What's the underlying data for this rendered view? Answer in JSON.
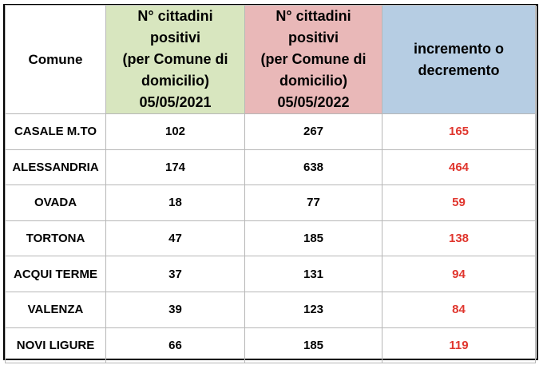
{
  "table": {
    "headers": [
      {
        "lines": [
          "Comune"
        ]
      },
      {
        "lines": [
          "N° cittadini",
          "positivi",
          "(per Comune di",
          "domicilio)",
          "05/05/2021"
        ]
      },
      {
        "lines": [
          "N° cittadini",
          "positivi",
          "(per Comune di",
          "domicilio)",
          "05/05/2022"
        ]
      },
      {
        "lines": [
          "incremento o",
          "decremento"
        ]
      }
    ],
    "rows": [
      {
        "comune": "CASALE M.TO",
        "v2021": "102",
        "v2022": "267",
        "delta": "165"
      },
      {
        "comune": "ALESSANDRIA",
        "v2021": "174",
        "v2022": "638",
        "delta": "464"
      },
      {
        "comune": "OVADA",
        "v2021": "18",
        "v2022": "77",
        "delta": "59"
      },
      {
        "comune": "TORTONA",
        "v2021": "47",
        "v2022": "185",
        "delta": "138"
      },
      {
        "comune": "ACQUI TERME",
        "v2021": "37",
        "v2022": "131",
        "delta": "94"
      },
      {
        "comune": "VALENZA",
        "v2021": "39",
        "v2022": "123",
        "delta": "84"
      },
      {
        "comune": "NOVI LIGURE",
        "v2021": "66",
        "v2022": "185",
        "delta": "119"
      }
    ]
  },
  "colors": {
    "header_2021": "#d8e6bf",
    "header_2022": "#e9b8b8",
    "header_delta": "#b6cde3",
    "delta_text": "#e0362e"
  }
}
